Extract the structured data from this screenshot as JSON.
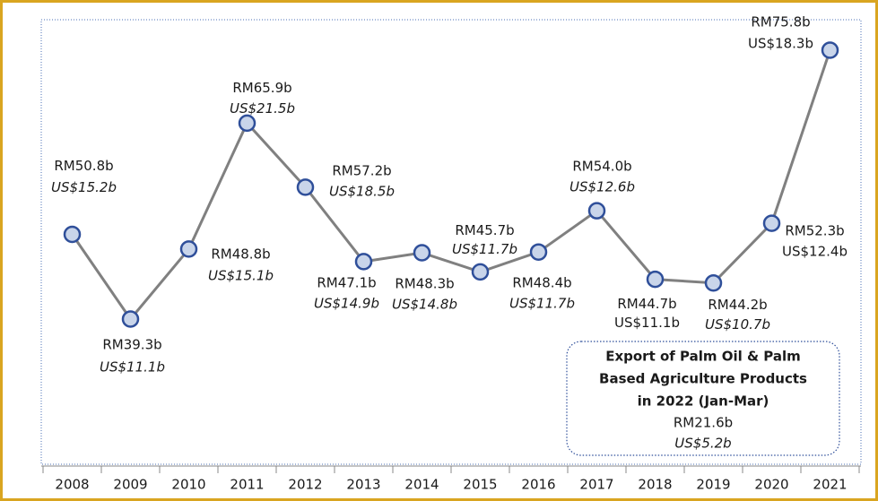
{
  "chart_data": {
    "type": "line",
    "categories": [
      "2008",
      "2009",
      "2010",
      "2011",
      "2012",
      "2013",
      "2014",
      "2015",
      "2016",
      "2017",
      "2018",
      "2019",
      "2020",
      "2021"
    ],
    "values": [
      50.8,
      39.3,
      48.8,
      65.9,
      57.2,
      47.1,
      48.3,
      45.7,
      48.4,
      54.0,
      44.7,
      44.2,
      52.3,
      75.8
    ],
    "value_labels": [
      "RM50.8b",
      "RM39.3b",
      "RM48.8b",
      "RM65.9b",
      "RM57.2b",
      "RM47.1b",
      "RM48.3b",
      "RM45.7b",
      "RM48.4b",
      "RM54.0b",
      "RM44.7b",
      "RM44.2b",
      "RM52.3b",
      "RM75.8b"
    ],
    "usd_labels": [
      "US$15.2b",
      "US$11.1b",
      "US$15.1b",
      "US$21.5b",
      "US$18.5b",
      "US$14.9b",
      "US$14.8b",
      "US$11.7b",
      "US$11.7b",
      "US$12.6b",
      "US$11.1b",
      "US$10.7b",
      "US$12.4b",
      "US$18.3b"
    ],
    "color": "#808080",
    "marker_fill": "#c9d5ea",
    "marker_stroke": "#2f4f9a",
    "annotation": {
      "title_lines": [
        "Export of Palm Oil & Palm",
        "Based Agriculture Products",
        "in 2022 (Jan-Mar)"
      ],
      "rm": "RM21.6b",
      "usd": "US$5.2b"
    }
  }
}
